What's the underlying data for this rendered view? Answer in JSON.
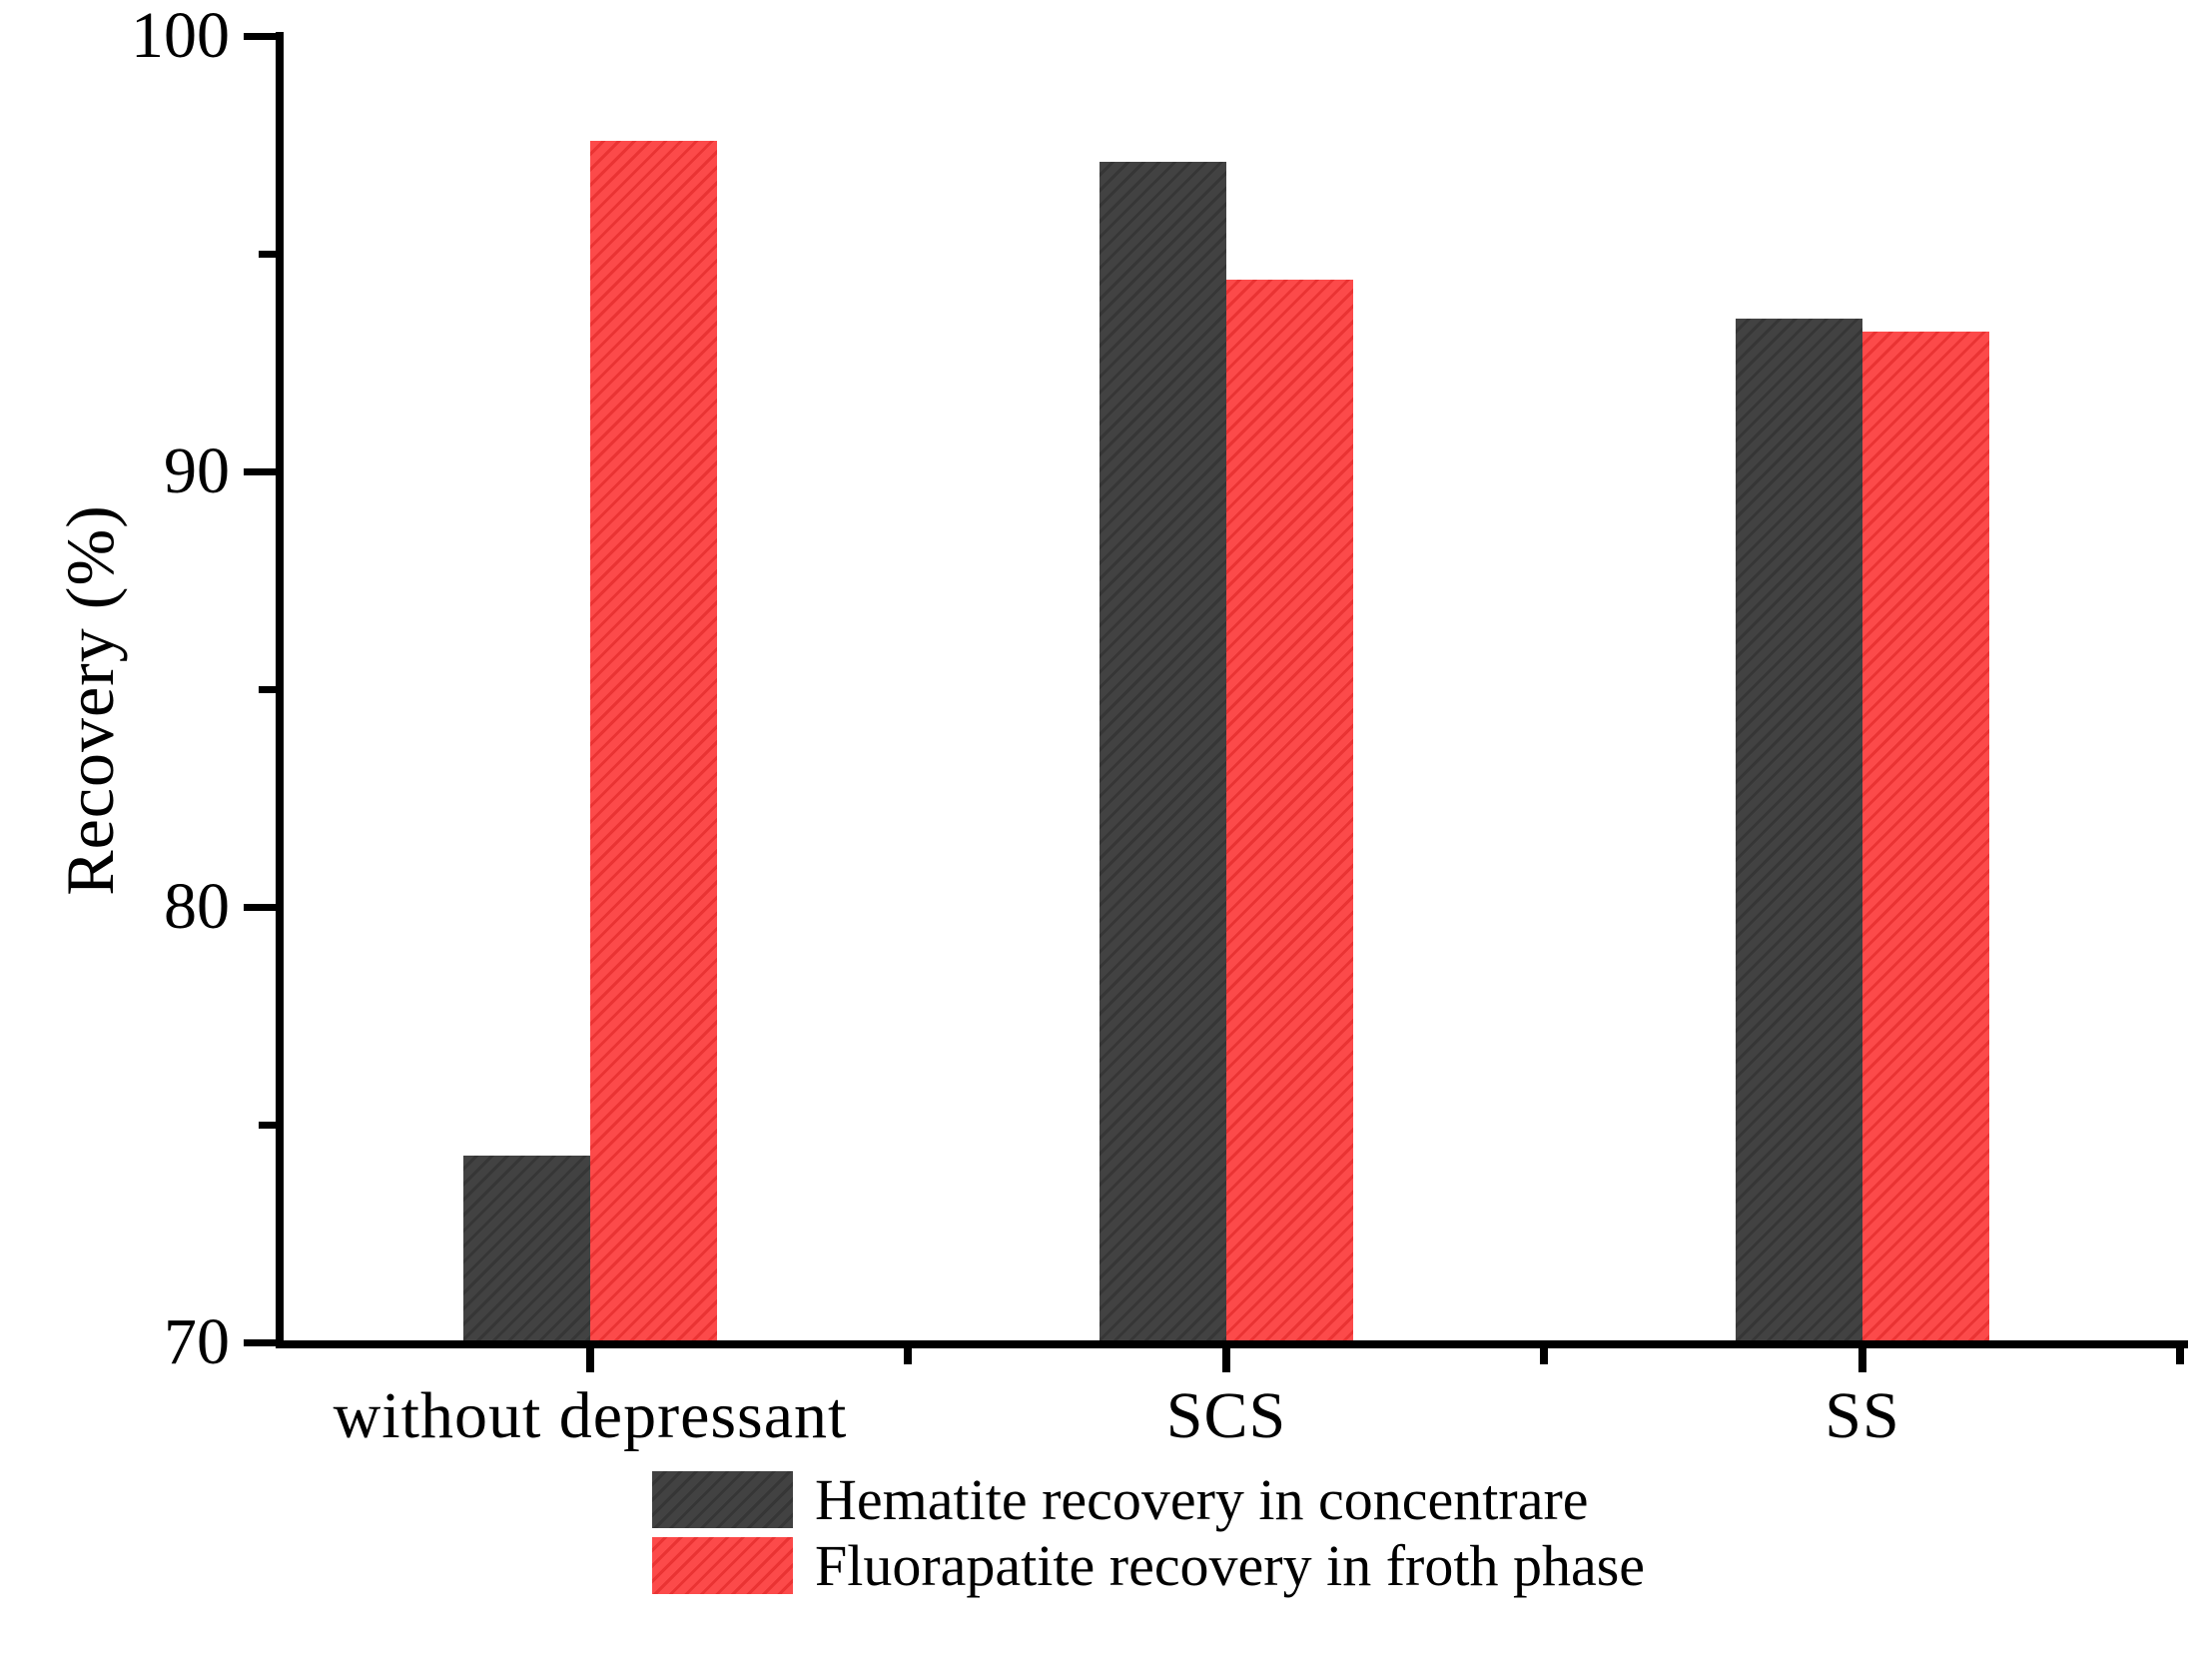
{
  "chart_data": {
    "type": "bar",
    "title": "",
    "xlabel": "",
    "ylabel": "Recovery (%)",
    "categories": [
      "without depressant",
      "SCS",
      "SS"
    ],
    "series": [
      {
        "name": "Hematite recovery in concentrare",
        "color": "#424242",
        "hatch_color": "#363636",
        "values": [
          74.3,
          97.1,
          93.5
        ]
      },
      {
        "name": "Fluorapatite recovery in froth phase",
        "color": "#fc4a4a",
        "hatch_color": "#ea3333",
        "values": [
          97.6,
          94.4,
          93.2
        ]
      }
    ],
    "ylim": [
      70,
      100
    ],
    "yticks_major": [
      70,
      80,
      90,
      100
    ],
    "yticks_minor": [
      75,
      85,
      95
    ],
    "y_tick_labels": [
      "70",
      "80",
      "90",
      "100"
    ],
    "grid": false,
    "legend_position": "bottom-center",
    "bar_hatch": "diagonal"
  },
  "colors": {
    "axis": "#000000",
    "background": "#ffffff",
    "text": "#000000",
    "series_hematite": "#424242",
    "series_fluorapatite": "#fc4a4a"
  }
}
